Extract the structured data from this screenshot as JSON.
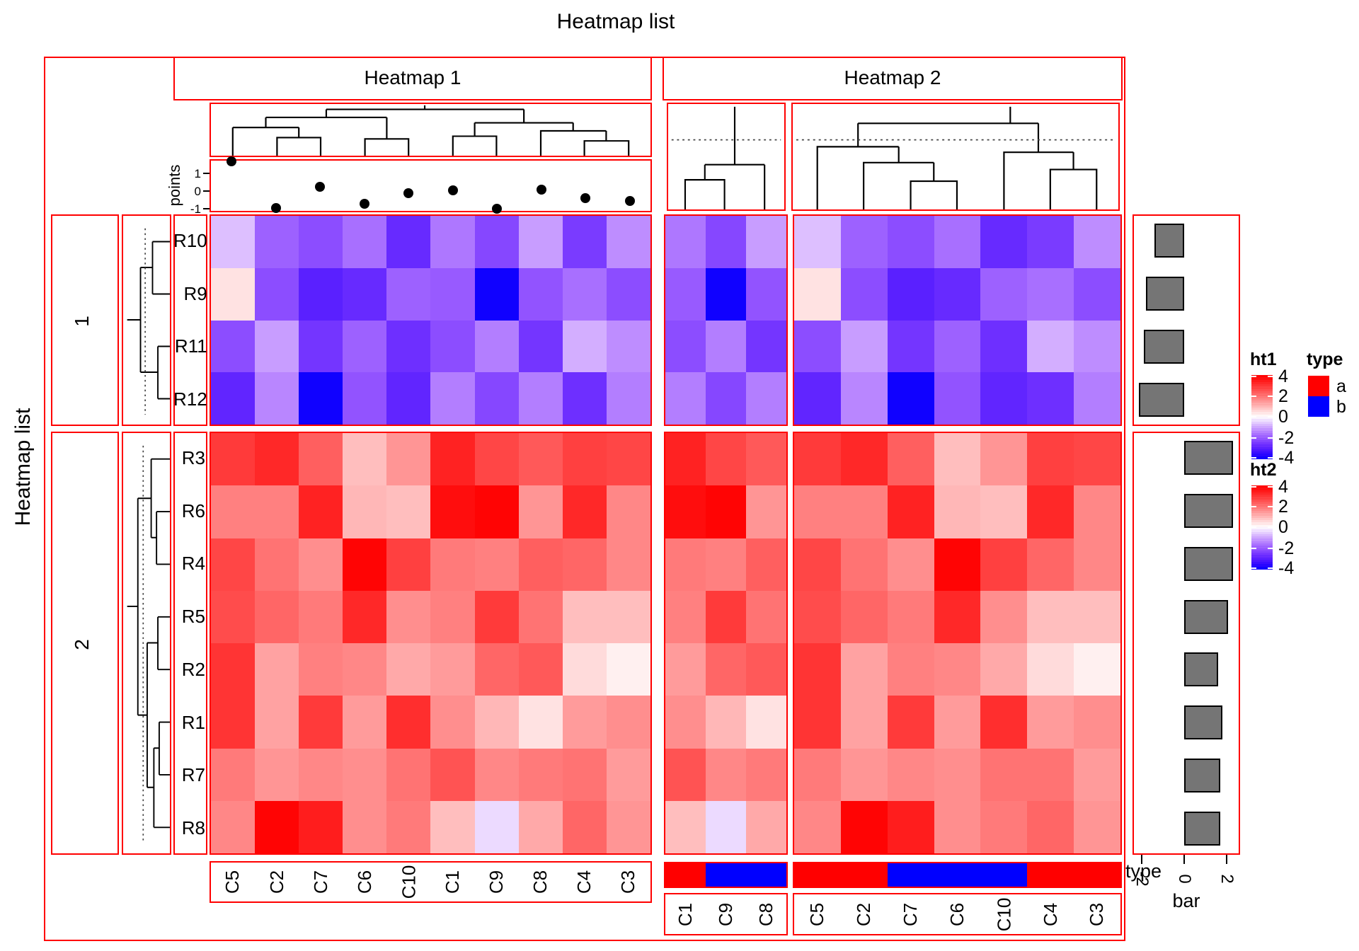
{
  "page_title": "Heatmap list",
  "left_title": "Heatmap list",
  "heatmaps": {
    "ht1": {
      "title": "Heatmap 1"
    },
    "ht2": {
      "title": "Heatmap 2"
    }
  },
  "row_groups": [
    {
      "label": "1",
      "rows": [
        "R10",
        "R9",
        "R11",
        "R12"
      ]
    },
    {
      "label": "2",
      "rows": [
        "R3",
        "R6",
        "R4",
        "R5",
        "R2",
        "R1",
        "R7",
        "R8"
      ]
    }
  ],
  "annotations": {
    "points": {
      "label": "points",
      "ticks": [
        "1",
        "0",
        "-1"
      ]
    },
    "type_label": "type",
    "bar": {
      "label": "bar",
      "ticks": [
        "-2",
        "0",
        "2"
      ]
    }
  },
  "legends": {
    "ht1": {
      "title": "ht1",
      "ticks": [
        "4",
        "2",
        "0",
        "-2",
        "-4"
      ]
    },
    "ht2": {
      "title": "ht2",
      "ticks": [
        "4",
        "2",
        "0",
        "-2",
        "-4"
      ]
    },
    "type": {
      "title": "type",
      "items": [
        {
          "label": "a",
          "color": "#FF0000"
        },
        {
          "label": "b",
          "color": "#0000FF"
        }
      ]
    }
  },
  "colors": {
    "border": "#FF0000",
    "bar_fill": "#757575",
    "dot": "#000000",
    "type_a": "#FF0000",
    "type_b": "#0000FF"
  },
  "chart_data": {
    "type": "heatmap",
    "title": "Heatmap list",
    "column_names": [
      "C1",
      "C2",
      "C3",
      "C4",
      "C5",
      "C6",
      "C7",
      "C8",
      "C9",
      "C10"
    ],
    "row_order": [
      "R10",
      "R9",
      "R11",
      "R12",
      "R3",
      "R6",
      "R4",
      "R5",
      "R2",
      "R1",
      "R7",
      "R8"
    ],
    "row_split": {
      "1": [
        "R10",
        "R9",
        "R11",
        "R12"
      ],
      "2": [
        "R3",
        "R6",
        "R4",
        "R5",
        "R2",
        "R1",
        "R7",
        "R8"
      ]
    },
    "values": {
      "R10": [
        -1.6,
        -1.9,
        -1.3,
        -2.5,
        -0.7,
        -1.7,
        -2.2,
        -1.1,
        -2.3,
        -2.8
      ],
      "R9": [
        -2.0,
        -2.2,
        -2.2,
        -1.7,
        0.4,
        -2.8,
        -3.0,
        -2.1,
        -3.9,
        -1.9
      ],
      "R11": [
        -2.2,
        -1.1,
        -1.3,
        -0.9,
        -2.2,
        -1.9,
        -2.6,
        -2.6,
        -1.5,
        -2.7
      ],
      "R12": [
        -1.5,
        -1.4,
        -1.5,
        -2.7,
        -2.9,
        -2.1,
        -3.9,
        -1.5,
        -2.3,
        -2.9
      ],
      "R3": [
        3.3,
        3.2,
        2.7,
        2.8,
        2.9,
        0.9,
        2.3,
        2.4,
        2.7,
        1.5
      ],
      "R6": [
        3.7,
        1.8,
        1.7,
        3.2,
        1.8,
        1.0,
        3.3,
        1.5,
        3.9,
        0.9
      ],
      "R4": [
        1.9,
        2.0,
        1.7,
        2.2,
        2.7,
        3.9,
        1.6,
        2.3,
        1.8,
        2.8
      ],
      "R5": [
        1.8,
        2.2,
        0.9,
        0.9,
        2.6,
        3.2,
        1.9,
        2.0,
        2.9,
        1.6
      ],
      "R2": [
        1.4,
        1.3,
        0.2,
        0.5,
        3.0,
        1.7,
        1.8,
        2.4,
        2.2,
        1.2
      ],
      "R1": [
        1.6,
        1.3,
        1.6,
        1.4,
        3.0,
        1.4,
        2.9,
        0.4,
        1.0,
        3.1
      ],
      "R7": [
        2.5,
        1.5,
        1.4,
        2.0,
        1.9,
        1.6,
        1.7,
        1.9,
        1.7,
        2.0
      ],
      "R8": [
        0.9,
        3.9,
        1.5,
        2.2,
        1.7,
        1.6,
        3.4,
        1.2,
        -0.4,
        1.9
      ]
    },
    "ht1_column_order": [
      "C5",
      "C2",
      "C7",
      "C6",
      "C10",
      "C1",
      "C9",
      "C8",
      "C4",
      "C3"
    ],
    "ht2_column_groups": [
      [
        "C1",
        "C9",
        "C8"
      ],
      [
        "C5",
        "C2",
        "C7",
        "C6",
        "C10",
        "C4",
        "C3"
      ]
    ],
    "column_type": {
      "C1": "a",
      "C2": "a",
      "C3": "a",
      "C4": "a",
      "C5": "a",
      "C6": "b",
      "C7": "b",
      "C8": "b",
      "C9": "b",
      "C10": "b"
    },
    "points_annotation": {
      "label": "points",
      "axis_ticks": [
        1,
        0,
        -1
      ],
      "values_in_ht1_order": [
        1.7,
        -0.95,
        0.25,
        -0.7,
        -0.1,
        0.05,
        -1.0,
        0.1,
        -0.4,
        -0.55
      ]
    },
    "bar_annotation": {
      "label": "bar",
      "axis_ticks": [
        -2,
        0,
        2
      ],
      "values_in_row_order": [
        -1.4,
        -1.8,
        -1.9,
        -2.15,
        2.3,
        2.3,
        2.3,
        2.05,
        1.6,
        1.8,
        1.7,
        1.7
      ]
    },
    "type_annotation": {
      "label": "type",
      "legend": {
        "a": "#FF0000",
        "b": "#0000FF"
      }
    },
    "colormap": {
      "min": -4,
      "max": 4,
      "neg_color": "#0000FF",
      "zero_color": "#FFFFFF",
      "pos_color": "#FF0000"
    },
    "legend_ticks": [
      4,
      2,
      0,
      -2,
      -4
    ]
  }
}
